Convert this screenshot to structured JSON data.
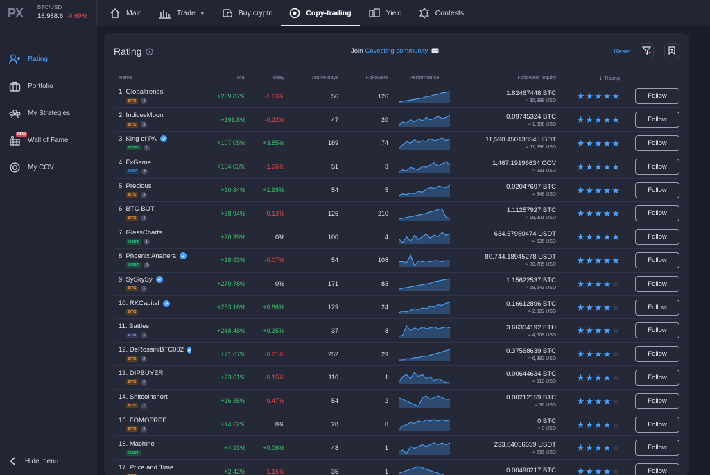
{
  "ticker": {
    "pair": "BTC/USD",
    "price": "16,988.6",
    "change": "-0.69%"
  },
  "nav": [
    {
      "label": "Main",
      "icon": "home-icon"
    },
    {
      "label": "Trade",
      "icon": "chart-bars-icon"
    },
    {
      "label": "Buy crypto",
      "icon": "buy-crypto-icon"
    },
    {
      "label": "Copy-trading",
      "icon": "copy-trading-icon",
      "active": true
    },
    {
      "label": "Yield",
      "icon": "yield-icon"
    },
    {
      "label": "Contests",
      "icon": "contests-icon"
    }
  ],
  "sidebar": {
    "items": [
      {
        "label": "Rating",
        "icon": "add-user-icon",
        "active": true
      },
      {
        "label": "Portfolio",
        "icon": "briefcase-icon"
      },
      {
        "label": "My Strategies",
        "icon": "strategies-icon"
      },
      {
        "label": "Wall of Fame",
        "icon": "wall-of-fame-icon",
        "badge": "NEW"
      },
      {
        "label": "My COV",
        "icon": "cov-coin-icon"
      }
    ],
    "hide_menu": "Hide menu"
  },
  "panel": {
    "title": "Rating",
    "join_text": "Join",
    "join_link": "Covesting community",
    "reset": "Reset"
  },
  "columns": {
    "name": "Name",
    "total": "Total",
    "today": "Today",
    "active_days": "Active days",
    "followers": "Followers",
    "performance": "Performance",
    "equity": "Followers' equity",
    "rating": "Rating"
  },
  "follow_label": "Follow",
  "colors": {
    "accent": "#4aa3ff",
    "positive": "#3ec46d",
    "negative": "#e5484d"
  },
  "rows": [
    {
      "name": "1. Globaltrends",
      "asset": "BTC",
      "count": "4",
      "verified": false,
      "total": "+239.87%",
      "today": "-1.63%",
      "days": "56",
      "followers": "126",
      "equity": "1.82467448 BTC",
      "equity_usd": "≈ 30,998 USD",
      "stars": 5,
      "spark": [
        2,
        3,
        4,
        5,
        6,
        7,
        8,
        10,
        11,
        13,
        14,
        16,
        17,
        18
      ]
    },
    {
      "name": "2. IndicesMoon",
      "asset": "BTC",
      "count": "3",
      "verified": false,
      "total": "+191.8%",
      "today": "-0.22%",
      "days": "47",
      "followers": "20",
      "equity": "0.09745324 BTC",
      "equity_usd": "≈ 1,656 USD",
      "stars": 5,
      "spark": [
        6,
        9,
        8,
        11,
        9,
        12,
        10,
        13,
        11,
        12,
        14,
        12,
        13,
        15
      ]
    },
    {
      "name": "3. King of PA",
      "asset": "USDT",
      "count": "1",
      "verified": true,
      "total": "+107.05%",
      "today": "+3.85%",
      "days": "189",
      "followers": "74",
      "equity": "11,590.45013854 USDT",
      "equity_usd": "≈ 11,596 USD",
      "stars": 5,
      "spark": [
        4,
        8,
        12,
        10,
        14,
        11,
        13,
        12,
        15,
        13,
        14,
        16,
        13,
        15
      ]
    },
    {
      "name": "4. FxGame",
      "asset": "COV",
      "count": "3",
      "verified": false,
      "total": "+104.03%",
      "today": "-1.06%",
      "days": "51",
      "followers": "3",
      "equity": "1,467.19196634 COV",
      "equity_usd": "≈ 231 USD",
      "stars": 5,
      "spark": [
        6,
        8,
        7,
        10,
        9,
        8,
        11,
        10,
        12,
        14,
        11,
        13,
        15,
        12
      ]
    },
    {
      "name": "5. Precious",
      "asset": "BTC",
      "count": "3",
      "verified": false,
      "total": "+60.84%",
      "today": "+1.99%",
      "days": "54",
      "followers": "5",
      "equity": "0.02047697 BTC",
      "equity_usd": "≈ 348 USD",
      "stars": 5,
      "spark": [
        3,
        5,
        4,
        6,
        5,
        8,
        7,
        11,
        13,
        12,
        15,
        14,
        13,
        16
      ]
    },
    {
      "name": "6. BTC BOT",
      "asset": "BTC",
      "count": "4",
      "verified": false,
      "total": "+58.94%",
      "today": "-0.13%",
      "days": "126",
      "followers": "210",
      "equity": "1.11257927 BTC",
      "equity_usd": "≈ 18,901 USD",
      "stars": 5,
      "spark": [
        2,
        3,
        4,
        5,
        6,
        7,
        8,
        9,
        11,
        12,
        14,
        15,
        4,
        3
      ]
    },
    {
      "name": "7. GlassCharts",
      "asset": "USDT",
      "count": "1",
      "verified": false,
      "total": "+20.39%",
      "today": "0%",
      "days": "100",
      "followers": "4",
      "equity": "634.57960474 USDT",
      "equity_usd": "≈ 635 USD",
      "stars": 5,
      "spark": [
        10,
        7,
        11,
        8,
        12,
        9,
        11,
        13,
        10,
        12,
        11,
        14,
        12,
        13
      ]
    },
    {
      "name": "8. Phoenix Anahera",
      "asset": "USDT",
      "count": "3",
      "verified": true,
      "total": "+18.93%",
      "today": "-0.07%",
      "days": "54",
      "followers": "108",
      "equity": "80,744.18945278 USDT",
      "equity_usd": "≈ 80,785 USD",
      "stars": 5,
      "spark": [
        8,
        8,
        7,
        15,
        4,
        9,
        8,
        9,
        8,
        9,
        9,
        8,
        9,
        9
      ]
    },
    {
      "name": "9. SySkySy",
      "asset": "BTC",
      "count": "1",
      "verified": true,
      "total": "+270.78%",
      "today": "0%",
      "days": "171",
      "followers": "83",
      "equity": "1.15622537 BTC",
      "equity_usd": "≈ 19,643 USD",
      "stars": 4,
      "spark": [
        2,
        3,
        4,
        5,
        6,
        7,
        8,
        9,
        10,
        12,
        13,
        14,
        15,
        16
      ]
    },
    {
      "name": "10. RKCapital",
      "asset": "BTC",
      "count": "",
      "verified": true,
      "total": "+253.16%",
      "today": "+0.86%",
      "days": "129",
      "followers": "24",
      "equity": "0.16612896 BTC",
      "equity_usd": "≈ 2,822 USD",
      "stars": 4,
      "spark": [
        3,
        5,
        4,
        6,
        8,
        7,
        9,
        8,
        11,
        10,
        13,
        12,
        15,
        16
      ]
    },
    {
      "name": "11. Battles",
      "asset": "ETH",
      "count": "3",
      "verified": false,
      "total": "+248.48%",
      "today": "+0.35%",
      "days": "37",
      "followers": "8",
      "equity": "3.66304192 ETH",
      "equity_usd": "≈ 4,608 USD",
      "stars": 4,
      "spark": [
        3,
        4,
        14,
        9,
        12,
        10,
        13,
        11,
        12,
        13,
        11,
        12,
        13,
        12
      ]
    },
    {
      "name": "12. DeRossiniBTC002",
      "asset": "BTC",
      "count": "2",
      "verified": true,
      "total": "+71.67%",
      "today": "-0.01%",
      "days": "252",
      "followers": "29",
      "equity": "0.37568639 BTC",
      "equity_usd": "≈ 6,382 USD",
      "stars": 4,
      "spark": [
        4,
        4,
        5,
        5,
        6,
        6,
        7,
        7,
        8,
        9,
        10,
        11,
        12,
        13
      ]
    },
    {
      "name": "13. DIPBUYER",
      "asset": "BTC",
      "count": "2",
      "verified": false,
      "total": "+23.61%",
      "today": "-0.15%",
      "days": "110",
      "followers": "1",
      "equity": "0.00644634 BTC",
      "equity_usd": "≈ 110 USD",
      "stars": 4,
      "spark": [
        8,
        11,
        12,
        10,
        13,
        11,
        12,
        10,
        11,
        9,
        10,
        9,
        8,
        8
      ]
    },
    {
      "name": "14. Shitcoinshort",
      "asset": "BTC",
      "count": "2",
      "verified": false,
      "total": "+16.35%",
      "today": "-0.47%",
      "days": "54",
      "followers": "2",
      "equity": "0.00212159 BTC",
      "equity_usd": "≈ 36 USD",
      "stars": 4,
      "spark": [
        12,
        11,
        10,
        9,
        8,
        7,
        12,
        13,
        11,
        12,
        13,
        12,
        11,
        11
      ]
    },
    {
      "name": "15. FOMOFREE",
      "asset": "BTC",
      "count": "2",
      "verified": false,
      "total": "+14.62%",
      "today": "0%",
      "days": "28",
      "followers": "0",
      "equity": "0 BTC",
      "equity_usd": "≈ 0 USD",
      "stars": 4,
      "spark": [
        4,
        7,
        8,
        10,
        9,
        11,
        10,
        12,
        11,
        12,
        11,
        12,
        11,
        12
      ]
    },
    {
      "name": "16. Machine",
      "asset": "USDT",
      "count": "",
      "verified": false,
      "total": "+4.93%",
      "today": "+0.06%",
      "days": "48",
      "followers": "1",
      "equity": "233.04056659 USDT",
      "equity_usd": "≈ 233 USD",
      "stars": 4,
      "spark": [
        6,
        7,
        5,
        9,
        8,
        9,
        10,
        9,
        10,
        11,
        10,
        11,
        10,
        11
      ]
    },
    {
      "name": "17. Price and Time",
      "asset": "BTC",
      "count": "",
      "verified": false,
      "total": "+2.42%",
      "today": "-1.15%",
      "days": "35",
      "followers": "1",
      "equity": "0.00490217 BTC",
      "equity_usd": "",
      "stars": 4,
      "spark": [
        6,
        7,
        8,
        9,
        10,
        11,
        10,
        9,
        8,
        7,
        6,
        5,
        4,
        3
      ]
    }
  ]
}
